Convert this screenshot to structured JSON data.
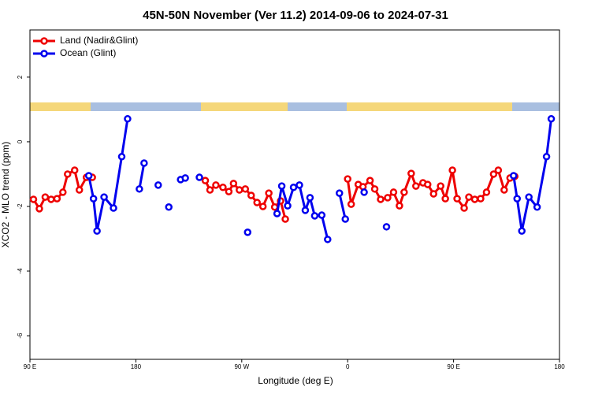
{
  "chart_data": {
    "type": "line",
    "title": "45N-50N November (Ver 11.2)   2014-09-06 to 2024-07-31",
    "x_label": "Longitude (deg E)",
    "y_label": "XCO2 - MLO trend (ppm)",
    "xlim": [
      90,
      540
    ],
    "xticks": [
      {
        "value": 90,
        "label": "90 E"
      },
      180,
      {
        "value": 270,
        "label": "90 W"
      },
      {
        "value": 360,
        "label": "0"
      },
      {
        "value": 450,
        "label": "90 E"
      },
      {
        "value": 540,
        "label": "180"
      }
    ],
    "ylim": [
      -6.73,
      3.46
    ],
    "yticks": [
      -6,
      -4,
      -2,
      0,
      2
    ],
    "legend": "upper left",
    "series": [
      {
        "name": "Land (Nadir&Glint)",
        "color": "#ee0000",
        "x": [
          93,
          98,
          103,
          108,
          113,
          118,
          122,
          128,
          132,
          138,
          143,
          null,
          239,
          243,
          248,
          254,
          259,
          263,
          268,
          273,
          278,
          283,
          288,
          293,
          298,
          303,
          307,
          null,
          360,
          363,
          369,
          373,
          379,
          383,
          388,
          394,
          399,
          404,
          408,
          414,
          418,
          424,
          428,
          433,
          439,
          443,
          449,
          453,
          459,
          463,
          468,
          473,
          478,
          484,
          488,
          493,
          498,
          502
        ],
        "values": [
          -1.78,
          -2.07,
          -1.71,
          -1.78,
          -1.76,
          -1.56,
          -1.0,
          -0.88,
          -1.49,
          -1.1,
          -1.1,
          null,
          -1.2,
          -1.49,
          -1.34,
          -1.41,
          -1.54,
          -1.29,
          -1.49,
          -1.46,
          -1.66,
          -1.88,
          -2.0,
          -1.59,
          -2.02,
          -1.83,
          -2.39,
          null,
          -1.15,
          -1.93,
          -1.32,
          -1.39,
          -1.2,
          -1.46,
          -1.78,
          -1.73,
          -1.56,
          -1.98,
          -1.56,
          -0.98,
          -1.37,
          -1.27,
          -1.32,
          -1.61,
          -1.37,
          -1.76,
          -0.88,
          -1.76,
          -2.05,
          -1.71,
          -1.78,
          -1.76,
          -1.56,
          -1.0,
          -0.88,
          -1.49,
          -1.12,
          -1.07
        ]
      },
      {
        "name": "Ocean (Glint)",
        "color": "#0000ee",
        "x": [
          140,
          144,
          147,
          153,
          161,
          168,
          173,
          null,
          183,
          187,
          null,
          199,
          null,
          208,
          null,
          218,
          222,
          null,
          234,
          null,
          275,
          null,
          300,
          304,
          309,
          314,
          319,
          324,
          328,
          332,
          338,
          343,
          null,
          353,
          358,
          null,
          374,
          null,
          393,
          null,
          501,
          504,
          508,
          514,
          521,
          529,
          533
        ],
        "values": [
          -1.05,
          -1.76,
          -2.76,
          -1.71,
          -2.05,
          -0.46,
          0.71,
          null,
          -1.46,
          -0.66,
          null,
          -1.34,
          null,
          -2.02,
          null,
          -1.17,
          -1.12,
          null,
          -1.1,
          null,
          -2.8,
          null,
          -2.22,
          -1.37,
          -1.98,
          -1.41,
          -1.34,
          -2.12,
          -1.73,
          -2.29,
          -2.27,
          -3.02,
          null,
          -1.59,
          -2.39,
          null,
          -1.56,
          null,
          -2.63,
          null,
          -1.05,
          -1.76,
          -2.76,
          -1.71,
          -2.02,
          -0.46,
          0.71
        ]
      }
    ]
  }
}
